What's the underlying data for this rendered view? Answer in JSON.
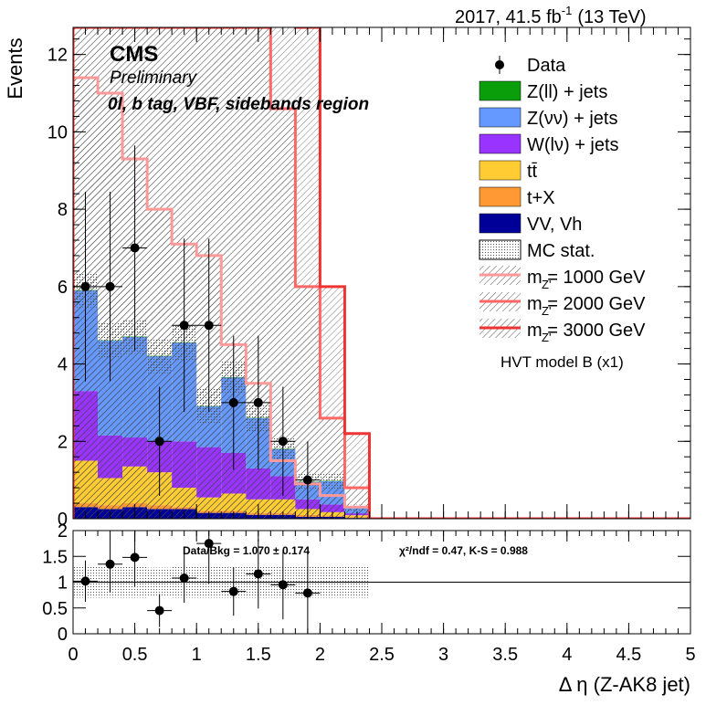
{
  "header": {
    "lumi": "2017, 41.5 fb",
    "lumi_sup": "-1",
    "energy": "(13 TeV)",
    "cms": "CMS",
    "preliminary": "Preliminary",
    "region": "0l, b tag, VBF, sidebands region"
  },
  "colors": {
    "zll": "#0a9e0a",
    "znn": "#6699ff",
    "wln": "#9933ff",
    "tt": "#ffcc33",
    "tx": "#ff9933",
    "vv": "#000099",
    "sig1000": "#ff9999",
    "sig2000": "#ff6666",
    "sig3000": "#ee3333"
  },
  "legend": {
    "data": "Data",
    "zll": "Z(ll) + jets",
    "znn": "Z(νν) + jets",
    "wln": "W(lν) + jets",
    "tt": "tt̄",
    "tx": "t+X",
    "vv": "VV, Vh",
    "mcstat": "MC stat.",
    "sig1000": "m  = 1000 GeV",
    "sig2000": "m  = 2000 GeV",
    "sig3000": "m  = 3000 GeV",
    "sig_sub": "Z'",
    "model": "HVT model B (x1)"
  },
  "ratio_text": {
    "data_bkg": "Data/Bkg = 1.070 ± 0.174",
    "chi2": "χ²/ndf = 0.47,   K-S = 0.988"
  },
  "chart_data": [
    {
      "type": "bar",
      "stacked": true,
      "xlabel": "Δ η (Z-AK8 jet)",
      "ylabel": "Events",
      "xlim": [
        0,
        5
      ],
      "ylim": [
        0,
        12.7
      ],
      "x_ticks": [
        "0",
        "0.5",
        "1",
        "1.5",
        "2",
        "2.5",
        "3",
        "3.5",
        "4",
        "4.5",
        "5"
      ],
      "y_ticks": [
        "0",
        "2",
        "4",
        "6",
        "8",
        "10",
        "12"
      ],
      "bin_edges": [
        0,
        0.2,
        0.4,
        0.6,
        0.8,
        1.0,
        1.2,
        1.4,
        1.6,
        1.8,
        2.0,
        2.2,
        2.4
      ],
      "series": [
        {
          "name": "VV, Vh",
          "key": "vv",
          "values": [
            0.3,
            0.25,
            0.3,
            0.25,
            0.25,
            0.15,
            0.15,
            0.1,
            0.1,
            0.05,
            0.05,
            0.02
          ]
        },
        {
          "name": "t+X",
          "key": "tx",
          "values": [
            0.1,
            0.1,
            0.1,
            0.1,
            0.05,
            0.05,
            0.05,
            0.05,
            0.05,
            0.05,
            0.02,
            0.02
          ]
        },
        {
          "name": "tt̄",
          "key": "tt",
          "values": [
            1.1,
            0.7,
            0.95,
            0.85,
            0.5,
            0.35,
            0.45,
            0.35,
            0.35,
            0.15,
            0.1,
            0.05
          ]
        },
        {
          "name": "W(lν) + jets",
          "key": "wln",
          "values": [
            1.8,
            1.1,
            0.75,
            0.8,
            1.2,
            1.3,
            1.05,
            0.8,
            0.6,
            0.25,
            0.2,
            0.05
          ]
        },
        {
          "name": "Z(νν) + jets",
          "key": "znn",
          "values": [
            2.6,
            2.45,
            2.6,
            2.2,
            2.55,
            1.05,
            1.95,
            1.3,
            0.7,
            0.45,
            0.6,
            0.13
          ]
        },
        {
          "name": "Z(ll) + jets",
          "key": "zll",
          "values": [
            0.01,
            0.01,
            0.01,
            0.01,
            0.01,
            0.01,
            0.01,
            0.01,
            0.01,
            0.01,
            0.01,
            0.01
          ]
        }
      ],
      "mc_stat_error": [
        0.45,
        0.45,
        0.45,
        0.45,
        0.45,
        0.45,
        0.4,
        0.35,
        0.3,
        0.2,
        0.2,
        0.08
      ],
      "signals": [
        {
          "name": "m_Z' = 1000 GeV",
          "key": "sig1000",
          "values": [
            11.4,
            11.0,
            9.3,
            8.0,
            7.1,
            6.8,
            4.5,
            3.5,
            1.5,
            0.9,
            0.6,
            0.3
          ]
        },
        {
          "name": "m_Z' = 2000 GeV",
          "key": "sig2000",
          "values": [
            12.7,
            12.7,
            12.7,
            12.7,
            12.7,
            12.7,
            12.7,
            12.7,
            10.6,
            6.0,
            2.6,
            0.8
          ]
        },
        {
          "name": "m_Z' = 3000 GeV",
          "key": "sig3000",
          "values": [
            12.7,
            12.7,
            12.7,
            12.7,
            12.7,
            12.7,
            12.7,
            12.7,
            13.0,
            12.7,
            6.0,
            2.2
          ]
        }
      ],
      "data": {
        "x": [
          0.1,
          0.3,
          0.5,
          0.7,
          0.9,
          1.1,
          1.3,
          1.5,
          1.7,
          1.9
        ],
        "y": [
          6,
          6,
          7,
          2,
          5,
          5,
          3,
          3,
          2,
          1
        ],
        "err_up": [
          2.45,
          2.45,
          2.65,
          1.41,
          2.24,
          2.24,
          1.73,
          1.73,
          1.41,
          1.0
        ],
        "err_down": [
          2.45,
          2.45,
          2.65,
          1.41,
          2.24,
          2.24,
          1.73,
          1.73,
          1.41,
          1.0
        ]
      }
    },
    {
      "type": "scatter",
      "xlabel": "",
      "ylabel": "",
      "xlim": [
        0,
        5
      ],
      "ylim": [
        0,
        2
      ],
      "y_ticks": [
        "0",
        "0.5",
        "1",
        "1.5",
        "2"
      ],
      "x": [
        0.1,
        0.3,
        0.5,
        0.7,
        0.9,
        1.1,
        1.3,
        1.5,
        1.7,
        1.9
      ],
      "y": [
        1.02,
        1.35,
        1.48,
        0.45,
        1.08,
        1.75,
        0.82,
        1.16,
        0.95,
        0.79
      ],
      "err": [
        0.4,
        0.55,
        0.56,
        0.32,
        0.48,
        0.78,
        0.47,
        0.67,
        0.67,
        0.79
      ],
      "band": [
        0.3,
        0.3,
        0.3,
        0.28,
        0.3,
        0.3,
        0.3,
        0.3,
        0.3,
        0.3,
        0.3,
        0.3
      ]
    }
  ]
}
